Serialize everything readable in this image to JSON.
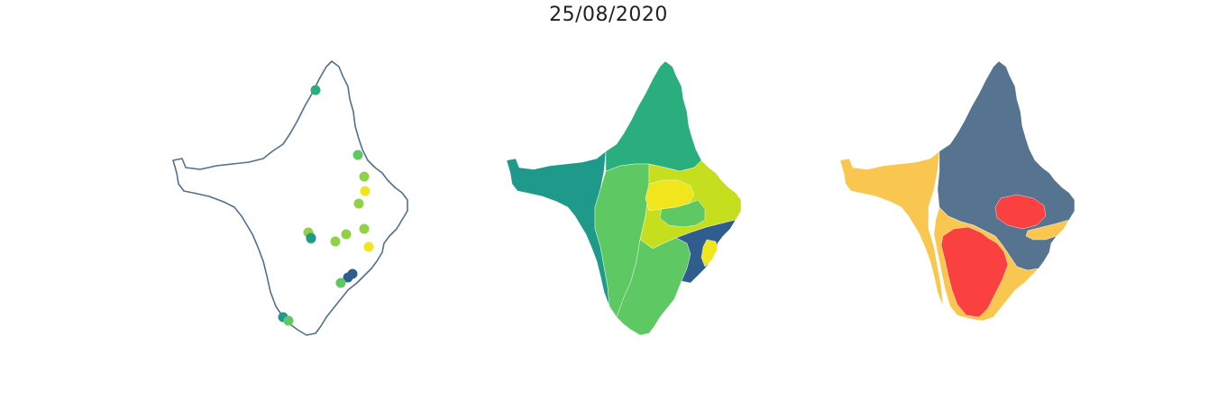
{
  "figure": {
    "title": "25/08/2020"
  },
  "colors": {
    "outline": "#51708e",
    "viridis_blue": "#2f5e8e",
    "viridis_teal": "#1f9a8a",
    "viridis_green": "#2bae7e",
    "viridis_lightgreen": "#5ec962",
    "viridis_lime": "#8fd244",
    "viridis_yellowgreen": "#c5df1e",
    "viridis_yellow": "#f1e51d",
    "risk_gray_blue": "#567490",
    "risk_yellow": "#f9c74f",
    "risk_red": "#fb4040"
  },
  "panels": [
    {
      "name": "point-map",
      "type": "points-over-outline"
    },
    {
      "name": "choropleth-viridis",
      "type": "choropleth"
    },
    {
      "name": "choropleth-risk",
      "type": "choropleth"
    }
  ],
  "points": [
    {
      "c": "viridis_green"
    },
    {
      "c": "viridis_lightgreen"
    },
    {
      "c": "viridis_lime"
    },
    {
      "c": "viridis_yellow"
    },
    {
      "c": "viridis_lime"
    },
    {
      "c": "viridis_lime"
    },
    {
      "c": "viridis_lime"
    },
    {
      "c": "viridis_lime"
    },
    {
      "c": "viridis_lime"
    },
    {
      "c": "viridis_lightgreen"
    },
    {
      "c": "viridis_teal"
    },
    {
      "c": "viridis_yellow"
    },
    {
      "c": "viridis_blue"
    },
    {
      "c": "viridis_blue"
    },
    {
      "c": "viridis_lightgreen"
    },
    {
      "c": "viridis_teal"
    },
    {
      "c": "viridis_lightgreen"
    }
  ]
}
